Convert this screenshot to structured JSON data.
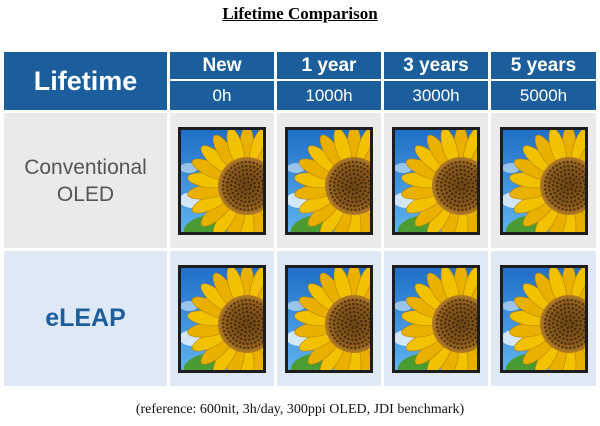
{
  "title": "Lifetime Comparison",
  "header": {
    "lifetime_label": "Lifetime",
    "periods": [
      {
        "label": "New",
        "hours": "0h"
      },
      {
        "label": "1 year",
        "hours": "1000h"
      },
      {
        "label": "3 years",
        "hours": "3000h"
      },
      {
        "label": "5 years",
        "hours": "5000h"
      }
    ]
  },
  "rows": [
    {
      "label_line1": "Conventional",
      "label_line2": "OLED",
      "image": "sunflower-photo"
    },
    {
      "label": "eLEAP",
      "image": "sunflower-photo"
    }
  ],
  "footnote": "(reference: 600nit, 3h/day, 300ppi OLED, JDI benchmark)",
  "colors": {
    "header_blue": "#1c5e9c",
    "conventional_row_bg": "#eaeaea",
    "eleap_row_bg": "#dfe9f6"
  }
}
